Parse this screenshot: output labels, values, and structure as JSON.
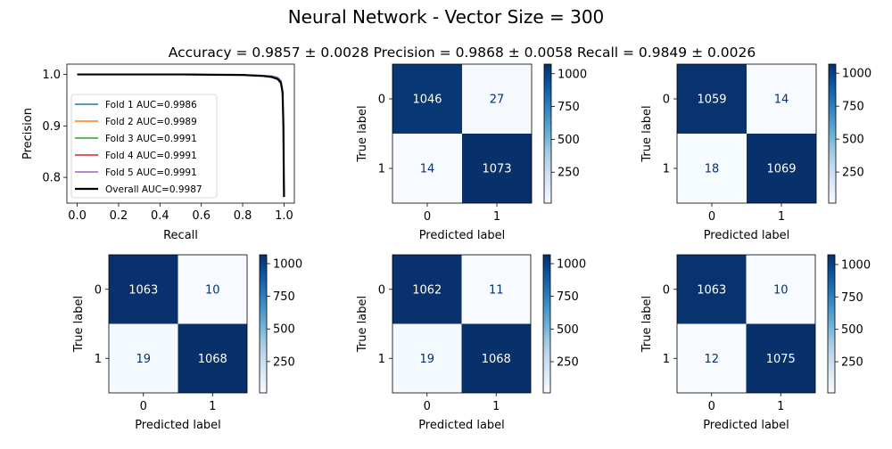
{
  "suptitle": "Neural Network - Vector Size = 300",
  "metrics_title": "Accuracy = 0.9857 ± 0.0028 Precision = 0.9868 ± 0.0058 Recall = 0.9849 ± 0.0026",
  "chart_data": [
    {
      "type": "line",
      "xlabel": "Recall",
      "ylabel": "Precision",
      "xlim": [
        -0.05,
        1.05
      ],
      "ylim": [
        0.75,
        1.02
      ],
      "xticks": [
        "0.0",
        "0.2",
        "0.4",
        "0.6",
        "0.8",
        "1.0"
      ],
      "yticks": [
        "0.8",
        "0.9",
        "1.0"
      ],
      "legend_position": "lower-left",
      "series": [
        {
          "name": "Fold 1 AUC=0.9986",
          "color": "#1f77b4",
          "width": 1.5,
          "points": [
            [
              0.0,
              1.0
            ],
            [
              0.5,
              1.0
            ],
            [
              0.8,
              0.999
            ],
            [
              0.9,
              0.997
            ],
            [
              0.94,
              0.995
            ],
            [
              0.97,
              0.99
            ],
            [
              0.985,
              0.982
            ],
            [
              0.993,
              0.96
            ],
            [
              0.997,
              0.9
            ],
            [
              0.999,
              0.8
            ],
            [
              1.0,
              0.762
            ]
          ]
        },
        {
          "name": "Fold 2 AUC=0.9989",
          "color": "#ff7f0e",
          "width": 1.5,
          "points": [
            [
              0.0,
              1.0
            ],
            [
              0.5,
              1.0
            ],
            [
              0.8,
              0.999
            ],
            [
              0.9,
              0.997
            ],
            [
              0.94,
              0.995
            ],
            [
              0.97,
              0.991
            ],
            [
              0.985,
              0.984
            ],
            [
              0.993,
              0.965
            ],
            [
              0.997,
              0.9
            ],
            [
              0.999,
              0.8
            ],
            [
              1.0,
              0.762
            ]
          ]
        },
        {
          "name": "Fold 3 AUC=0.9991",
          "color": "#2ca02c",
          "width": 1.5,
          "points": [
            [
              0.0,
              1.0
            ],
            [
              0.5,
              1.0
            ],
            [
              0.8,
              0.999
            ],
            [
              0.9,
              0.998
            ],
            [
              0.94,
              0.996
            ],
            [
              0.97,
              0.992
            ],
            [
              0.985,
              0.985
            ],
            [
              0.993,
              0.967
            ],
            [
              0.997,
              0.9
            ],
            [
              0.999,
              0.8
            ],
            [
              1.0,
              0.762
            ]
          ]
        },
        {
          "name": "Fold 4 AUC=0.9991",
          "color": "#d62728",
          "width": 1.5,
          "points": [
            [
              0.0,
              1.0
            ],
            [
              0.5,
              1.0
            ],
            [
              0.8,
              0.999
            ],
            [
              0.9,
              0.998
            ],
            [
              0.94,
              0.996
            ],
            [
              0.97,
              0.992
            ],
            [
              0.985,
              0.986
            ],
            [
              0.993,
              0.968
            ],
            [
              0.997,
              0.9
            ],
            [
              0.999,
              0.8
            ],
            [
              1.0,
              0.762
            ]
          ]
        },
        {
          "name": "Fold 5 AUC=0.9991",
          "color": "#9467bd",
          "width": 1.5,
          "points": [
            [
              0.0,
              1.0
            ],
            [
              0.5,
              1.0
            ],
            [
              0.8,
              0.999
            ],
            [
              0.9,
              0.998
            ],
            [
              0.94,
              0.997
            ],
            [
              0.97,
              0.994
            ],
            [
              0.985,
              0.988
            ],
            [
              0.993,
              0.97
            ],
            [
              0.997,
              0.9
            ],
            [
              0.999,
              0.8
            ],
            [
              1.0,
              0.762
            ]
          ]
        },
        {
          "name": "Overall AUC=0.9987",
          "color": "#000000",
          "width": 2.2,
          "points": [
            [
              0.0,
              1.0
            ],
            [
              0.5,
              1.0
            ],
            [
              0.8,
              0.999
            ],
            [
              0.9,
              0.997
            ],
            [
              0.94,
              0.995
            ],
            [
              0.97,
              0.991
            ],
            [
              0.985,
              0.984
            ],
            [
              0.993,
              0.965
            ],
            [
              0.997,
              0.9
            ],
            [
              0.999,
              0.8
            ],
            [
              1.0,
              0.762
            ]
          ]
        }
      ]
    },
    {
      "type": "heatmap",
      "matrix": [
        [
          1046,
          27
        ],
        [
          14,
          1073
        ]
      ],
      "xlabel": "Predicted label",
      "ylabel": "True label",
      "classes": [
        "0",
        "1"
      ],
      "colorbar_ticks": [
        "250",
        "500",
        "750",
        "1000"
      ],
      "colorbar_range": [
        14,
        1073
      ],
      "colormap": "Blues"
    },
    {
      "type": "heatmap",
      "matrix": [
        [
          1059,
          14
        ],
        [
          18,
          1069
        ]
      ],
      "xlabel": "Predicted label",
      "ylabel": "True label",
      "classes": [
        "0",
        "1"
      ],
      "colorbar_ticks": [
        "250",
        "500",
        "750",
        "1000"
      ],
      "colorbar_range": [
        14,
        1069
      ],
      "colormap": "Blues"
    },
    {
      "type": "heatmap",
      "matrix": [
        [
          1063,
          10
        ],
        [
          19,
          1068
        ]
      ],
      "xlabel": "Predicted label",
      "ylabel": "True label",
      "classes": [
        "0",
        "1"
      ],
      "colorbar_ticks": [
        "250",
        "500",
        "750",
        "1000"
      ],
      "colorbar_range": [
        10,
        1068
      ],
      "colormap": "Blues"
    },
    {
      "type": "heatmap",
      "matrix": [
        [
          1062,
          11
        ],
        [
          19,
          1068
        ]
      ],
      "xlabel": "Predicted label",
      "ylabel": "True label",
      "classes": [
        "0",
        "1"
      ],
      "colorbar_ticks": [
        "250",
        "500",
        "750",
        "1000"
      ],
      "colorbar_range": [
        11,
        1068
      ],
      "colormap": "Blues"
    },
    {
      "type": "heatmap",
      "matrix": [
        [
          1063,
          10
        ],
        [
          12,
          1075
        ]
      ],
      "xlabel": "Predicted label",
      "ylabel": "True label",
      "classes": [
        "0",
        "1"
      ],
      "colorbar_ticks": [
        "250",
        "500",
        "750",
        "1000"
      ],
      "colorbar_range": [
        10,
        1075
      ],
      "colormap": "Blues"
    }
  ]
}
